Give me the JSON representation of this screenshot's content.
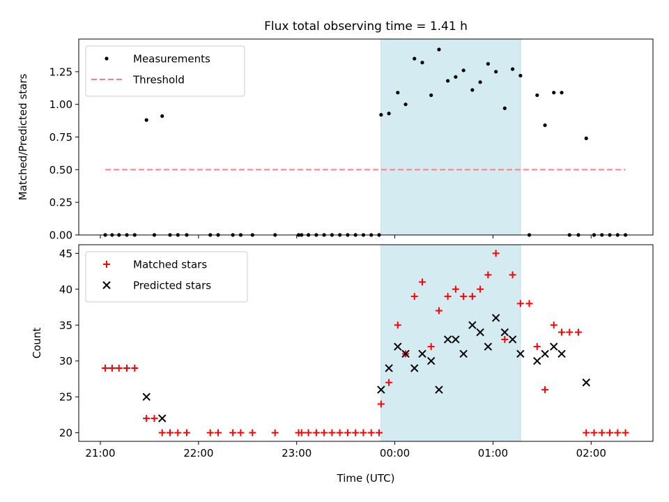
{
  "figure": {
    "title": "Flux total observing time = 1.41 h",
    "xlabel": "Time (UTC)",
    "x_ticks": [
      "21:00",
      "22:00",
      "23:00",
      "00:00",
      "01:00",
      "02:00"
    ],
    "x_tick_hours": [
      0,
      1,
      2,
      3,
      4,
      5
    ],
    "x_range": [
      -0.22,
      5.63
    ],
    "highlight_span": [
      2.86,
      4.28
    ],
    "highlight_color": "#d4ebf2"
  },
  "chart_data": [
    {
      "type": "scatter",
      "ylabel": "Matched/Predicted stars",
      "ylim": [
        0,
        1.5
      ],
      "y_ticks": [
        "0.00",
        "0.25",
        "0.50",
        "0.75",
        "1.00",
        "1.25"
      ],
      "y_tick_values": [
        0,
        0.25,
        0.5,
        0.75,
        1.0,
        1.25
      ],
      "legend_position": "top-left",
      "series": [
        {
          "name": "Measurements",
          "marker": "dot",
          "color": "#000000",
          "x": [
            0.05,
            0.12,
            0.19,
            0.27,
            0.35,
            0.47,
            0.55,
            0.63,
            0.71,
            0.79,
            0.88,
            1.12,
            1.2,
            1.35,
            1.43,
            1.55,
            1.78,
            2.02,
            2.05,
            2.12,
            2.2,
            2.28,
            2.36,
            2.44,
            2.52,
            2.6,
            2.68,
            2.76,
            2.84,
            2.86,
            2.94,
            3.03,
            3.11,
            3.2,
            3.28,
            3.37,
            3.45,
            3.54,
            3.62,
            3.7,
            3.79,
            3.87,
            3.95,
            4.03,
            4.12,
            4.2,
            4.28,
            4.37,
            4.45,
            4.53,
            4.62,
            4.7,
            4.78,
            4.87,
            4.95,
            5.03,
            5.11,
            5.19,
            5.27,
            5.35
          ],
          "y": [
            0,
            0,
            0,
            0,
            0,
            0.88,
            0,
            0.91,
            0,
            0,
            0,
            0,
            0,
            0,
            0,
            0,
            0,
            0,
            0,
            0,
            0,
            0,
            0,
            0,
            0,
            0,
            0,
            0,
            0,
            0.92,
            0.93,
            1.09,
            1.0,
            1.35,
            1.32,
            1.07,
            1.42,
            1.18,
            1.21,
            1.26,
            1.11,
            1.17,
            1.31,
            1.25,
            0.97,
            1.27,
            1.22,
            0,
            1.07,
            0.84,
            1.09,
            1.09,
            0,
            0,
            0.74,
            0,
            0,
            0,
            0,
            0
          ]
        },
        {
          "name": "Threshold",
          "marker": "dashed-line",
          "color": "#ff7f7f",
          "x": [
            0.05,
            5.35
          ],
          "y": [
            0.5,
            0.5
          ]
        }
      ]
    },
    {
      "type": "scatter",
      "ylabel": "Count",
      "ylim": [
        18.8,
        46.2
      ],
      "y_ticks": [
        "20",
        "25",
        "30",
        "35",
        "40",
        "45"
      ],
      "y_tick_values": [
        20,
        25,
        30,
        35,
        40,
        45
      ],
      "legend_position": "top-left",
      "series": [
        {
          "name": "Matched stars",
          "marker": "plus",
          "color": "#ff0000",
          "x": [
            0.05,
            0.12,
            0.19,
            0.27,
            0.35,
            0.47,
            0.55,
            0.63,
            0.71,
            0.79,
            0.88,
            1.12,
            1.2,
            1.35,
            1.43,
            1.55,
            1.78,
            2.02,
            2.05,
            2.12,
            2.2,
            2.28,
            2.36,
            2.44,
            2.52,
            2.6,
            2.68,
            2.76,
            2.84,
            2.86,
            2.94,
            3.03,
            3.11,
            3.2,
            3.28,
            3.37,
            3.45,
            3.54,
            3.62,
            3.7,
            3.79,
            3.87,
            3.95,
            4.03,
            4.12,
            4.2,
            4.28,
            4.37,
            4.45,
            4.53,
            4.62,
            4.7,
            4.78,
            4.87,
            4.95,
            5.03,
            5.11,
            5.19,
            5.27,
            5.35
          ],
          "y": [
            29,
            29,
            29,
            29,
            29,
            22,
            22,
            20,
            20,
            20,
            20,
            20,
            20,
            20,
            20,
            20,
            20,
            20,
            20,
            20,
            20,
            20,
            20,
            20,
            20,
            20,
            20,
            20,
            20,
            24,
            27,
            35,
            31,
            39,
            41,
            32,
            37,
            39,
            40,
            39,
            39,
            40,
            42,
            45,
            33,
            42,
            38,
            38,
            32,
            26,
            35,
            34,
            34,
            34,
            20,
            20,
            20,
            20,
            20,
            20
          ]
        },
        {
          "name": "Predicted stars",
          "marker": "x",
          "color": "#000000",
          "x": [
            0.47,
            0.63,
            2.86,
            2.94,
            3.03,
            3.11,
            3.2,
            3.28,
            3.37,
            3.45,
            3.54,
            3.62,
            3.7,
            3.79,
            3.87,
            3.95,
            4.03,
            4.12,
            4.2,
            4.28,
            4.45,
            4.53,
            4.62,
            4.7,
            4.95
          ],
          "y": [
            25,
            22,
            26,
            29,
            32,
            31,
            29,
            31,
            30,
            26,
            33,
            33,
            31,
            35,
            34,
            32,
            36,
            34,
            33,
            31,
            30,
            31,
            32,
            31,
            27
          ]
        }
      ]
    }
  ]
}
